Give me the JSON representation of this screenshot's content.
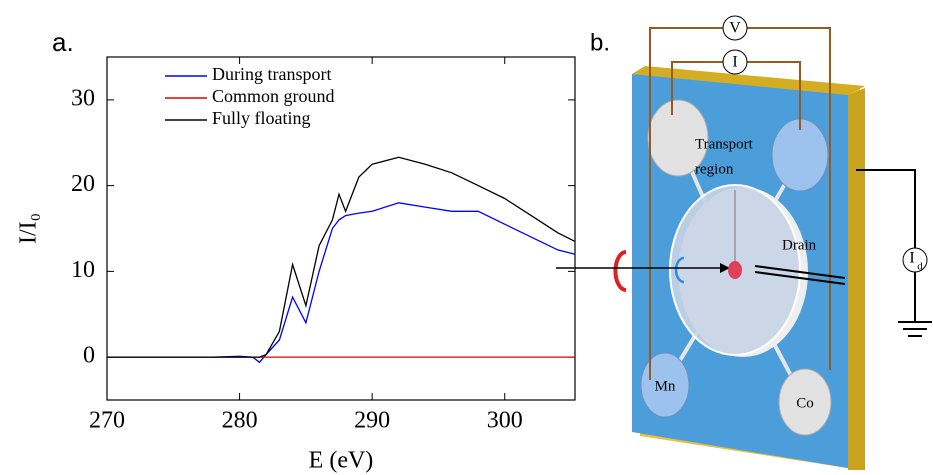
{
  "panel_labels": [
    "a.",
    "b."
  ],
  "chart_data": {
    "type": "line",
    "xlabel": "E (eV)",
    "ylabel": "I/I₀",
    "x": [
      270,
      272,
      274,
      276,
      278,
      280,
      281,
      281.5,
      282,
      283,
      284,
      285,
      286,
      287,
      287.5,
      288,
      289,
      290,
      292,
      294,
      296,
      298,
      300,
      302,
      304,
      305.3
    ],
    "series": [
      {
        "name": "During transport",
        "color": "#0000ff",
        "values": [
          0,
          0,
          0,
          0,
          0,
          0.1,
          0,
          -0.6,
          0.3,
          2,
          7,
          4,
          10,
          15,
          16,
          16.5,
          16.8,
          17,
          18,
          17.5,
          17,
          17,
          15.5,
          14,
          12.5,
          12
        ]
      },
      {
        "name": "Common ground",
        "color": "#e00000",
        "values": [
          0,
          0,
          0,
          0,
          0,
          0,
          0,
          0,
          0,
          0,
          0,
          0,
          0,
          0,
          0,
          0,
          0,
          0,
          0,
          0,
          0,
          0,
          0,
          0,
          0,
          0
        ]
      },
      {
        "name": "Fully floating",
        "color": "#000000",
        "values": [
          0,
          0,
          0,
          0,
          0,
          0,
          0,
          0,
          0.3,
          3,
          10.8,
          6,
          13,
          16,
          19,
          17,
          21,
          22.5,
          23.3,
          22.5,
          21.5,
          20,
          18.5,
          16.5,
          14.5,
          13.5
        ]
      }
    ],
    "xlim": [
      270,
      305.3
    ],
    "xticks": [
      270,
      280,
      290,
      300
    ],
    "ylim": [
      -5,
      35
    ],
    "yticks": [
      0,
      10,
      20,
      30
    ]
  },
  "diagram": {
    "voltmeter": "V",
    "current_meter": "I",
    "transport_region": [
      "Transport",
      "region"
    ],
    "drain": "Drain",
    "contact_left": "Mn",
    "contact_right": "Co",
    "drain_meter": {
      "main": "I",
      "sub": "d"
    }
  }
}
